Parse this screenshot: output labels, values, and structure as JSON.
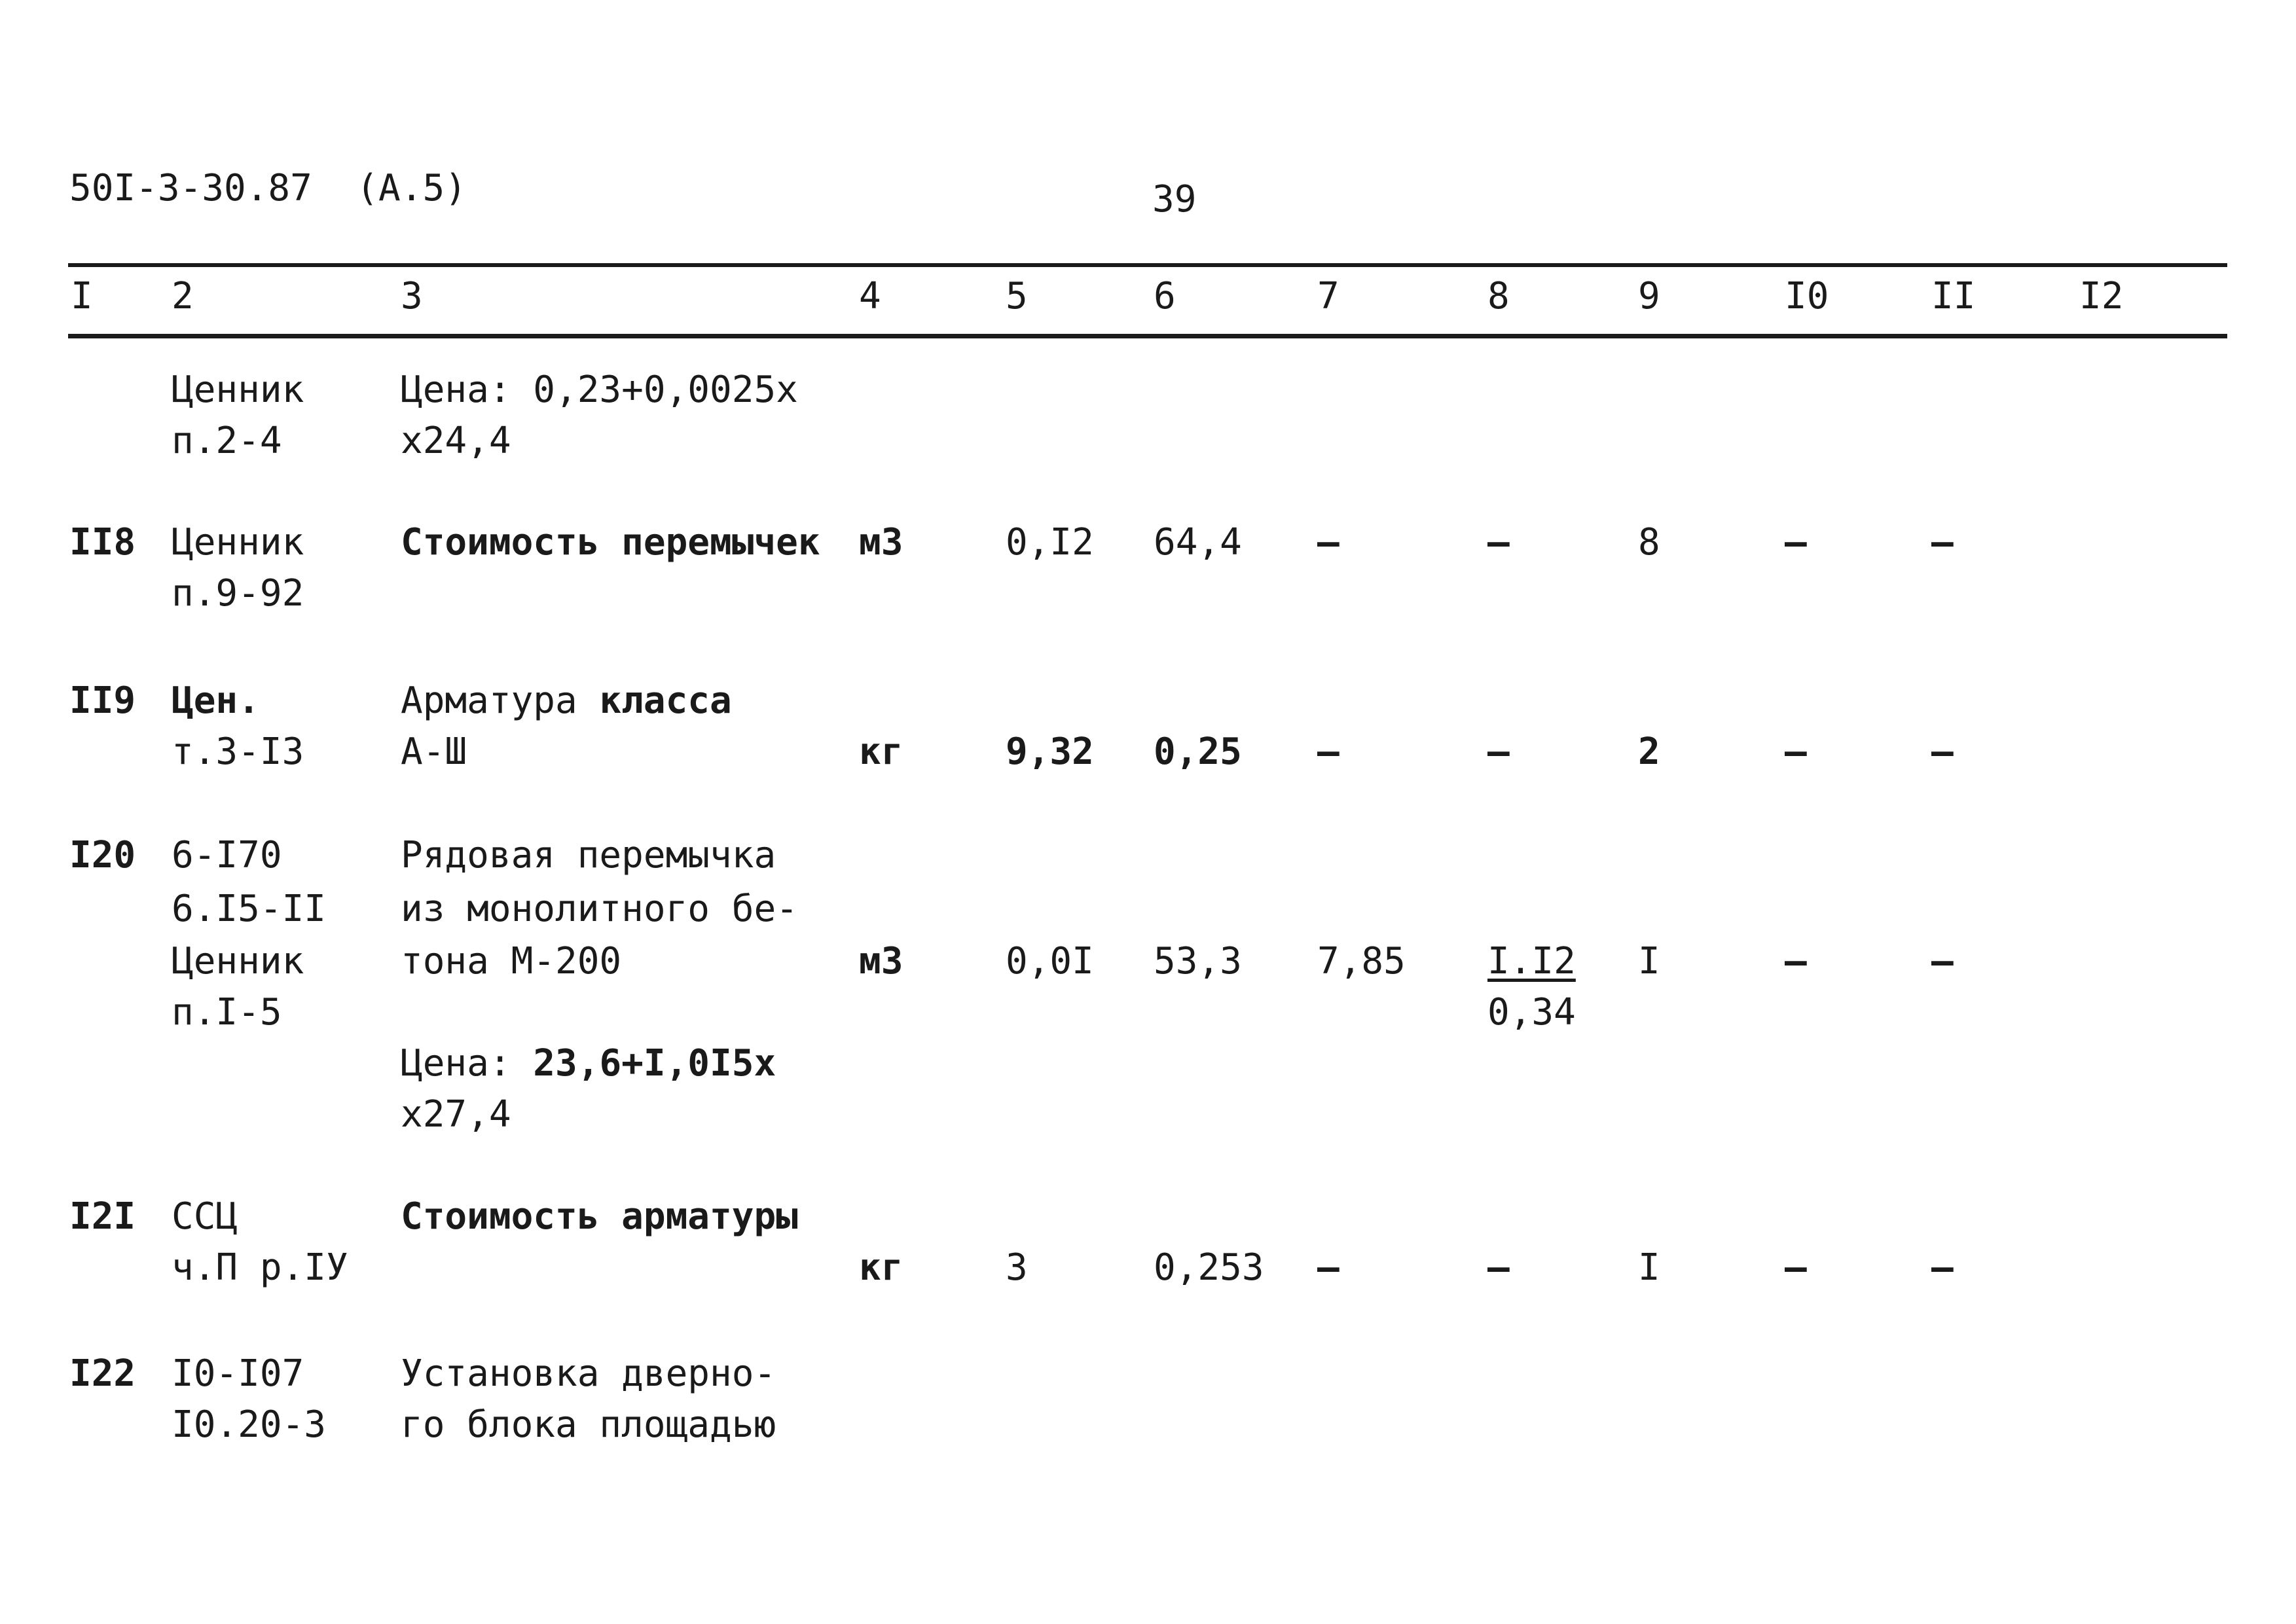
{
  "header": {
    "doc_code": "50I-3-30.87  (A.5)",
    "page_number": "39"
  },
  "columns": [
    "I",
    "2",
    "3",
    "4",
    "5",
    "6",
    "7",
    "8",
    "9",
    "I0",
    "II",
    "I2"
  ],
  "rows": {
    "r0": {
      "ref1": "Ценник",
      "ref2": "п.2-4",
      "desc1": "Цена: 0,23+0,0025х",
      "desc2": "х24,4"
    },
    "r118": {
      "num": "II8",
      "ref1": "Ценник",
      "ref2": "п.9-92",
      "desc1": "Стоимость перемычек",
      "unit": "м3",
      "c5": "0,I2",
      "c6": "64,4",
      "c7": "–",
      "c8": "–",
      "c9": "8",
      "c10": "–",
      "c11": "–"
    },
    "r119": {
      "num": "II9",
      "ref1": "Цен.",
      "ref2": "т.3-I3",
      "desc1a": "Арматура ",
      "desc1b": "класса",
      "desc2": "А-Ш",
      "unit": "кг",
      "c5": "9,32",
      "c6": "0,25",
      "c7": "–",
      "c8": "–",
      "c9": "2",
      "c10": "–",
      "c11": "–"
    },
    "r120": {
      "num": "I20",
      "ref1": "6-I70",
      "ref2": "6.I5-II",
      "ref3": "Ценник",
      "ref4": "п.I-5",
      "desc1": "Рядовая перемычка",
      "desc2": "из монолитного бе-",
      "desc3": "тона М-200",
      "desc4a": "Цена: ",
      "desc4b": "23,6+I,0I5х",
      "desc5": "х27,4",
      "unit": "м3",
      "c5": "0,0I",
      "c6": "53,3",
      "c7": "7,85",
      "c8a": "I.I2",
      "c8b": "0,34",
      "c9": "I",
      "c10": "–",
      "c11": "–"
    },
    "r121": {
      "num": "I2I",
      "ref1": "ССЦ",
      "ref2": "ч.П р.IУ",
      "desc1": "Стоимость арматуры",
      "unit": "кг",
      "c5": "3",
      "c6": "0,253",
      "c7": "–",
      "c8": "–",
      "c9": "I",
      "c10": "–",
      "c11": "–"
    },
    "r122": {
      "num": "I22",
      "ref1": "I0-I07",
      "ref2": "I0.20-3",
      "desc1": "Установка дверно-",
      "desc2": "го блока площадью"
    }
  }
}
